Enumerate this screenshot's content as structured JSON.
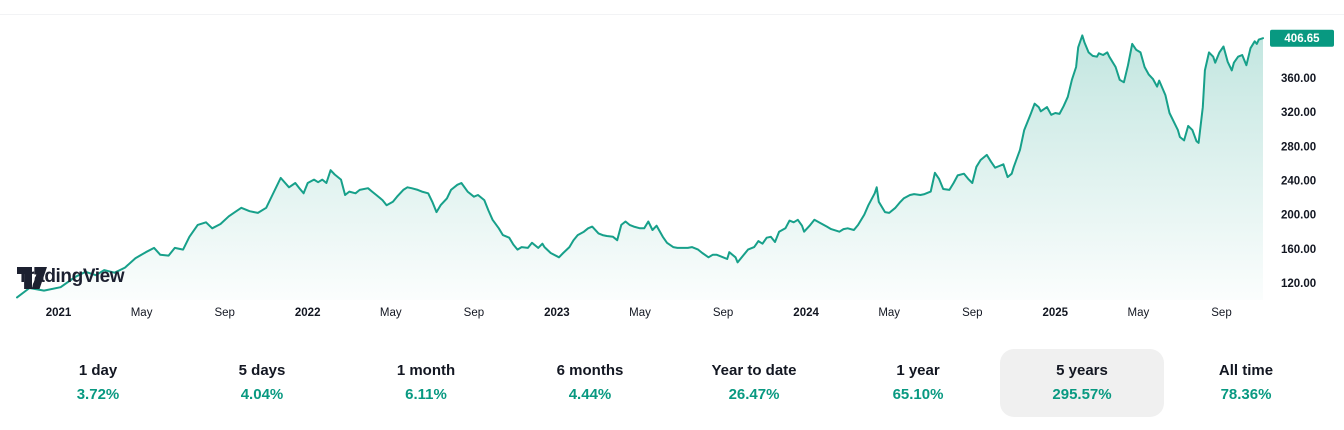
{
  "brand": {
    "logo_text": "TradingView"
  },
  "colors": {
    "accent": "#089981",
    "line": "#17a08a",
    "fill_top": "rgba(8,153,129,0.26)",
    "fill_bottom": "rgba(8,153,129,0.01)",
    "text": "#131722",
    "selected_bg": "#f0f0f0",
    "badge_bg": "#089981",
    "badge_text": "#ffffff"
  },
  "chart_data": {
    "type": "area",
    "title": "",
    "xlabel": "",
    "ylabel": "",
    "grid": false,
    "legend": false,
    "xlim": [
      0,
      60
    ],
    "ylim": [
      100,
      428
    ],
    "x_unit": "months-since-start (5-year range)",
    "x_ticks": [
      {
        "label": "2021",
        "m": 2,
        "bold": true
      },
      {
        "label": "May",
        "m": 6,
        "bold": false
      },
      {
        "label": "Sep",
        "m": 10,
        "bold": false
      },
      {
        "label": "2022",
        "m": 14,
        "bold": true
      },
      {
        "label": "May",
        "m": 18,
        "bold": false
      },
      {
        "label": "Sep",
        "m": 22,
        "bold": false
      },
      {
        "label": "2023",
        "m": 26,
        "bold": true
      },
      {
        "label": "May",
        "m": 30,
        "bold": false
      },
      {
        "label": "Sep",
        "m": 34,
        "bold": false
      },
      {
        "label": "2024",
        "m": 38,
        "bold": true
      },
      {
        "label": "May",
        "m": 42,
        "bold": false
      },
      {
        "label": "Sep",
        "m": 46,
        "bold": false
      },
      {
        "label": "2025",
        "m": 50,
        "bold": true
      },
      {
        "label": "May",
        "m": 54,
        "bold": false
      },
      {
        "label": "Sep",
        "m": 58,
        "bold": false
      }
    ],
    "y_ticks": [
      {
        "label": "360.00",
        "v": 360
      },
      {
        "label": "320.00",
        "v": 320
      },
      {
        "label": "280.00",
        "v": 280
      },
      {
        "label": "240.00",
        "v": 240
      },
      {
        "label": "200.00",
        "v": 200
      },
      {
        "label": "160.00",
        "v": 160
      },
      {
        "label": "120.00",
        "v": 120
      }
    ],
    "last_price": {
      "value": 406.65,
      "label": "406.65"
    },
    "series": [
      {
        "name": "price",
        "points": [
          [
            0,
            103
          ],
          [
            0.6,
            114
          ],
          [
            1.3,
            111
          ],
          [
            2.1,
            115
          ],
          [
            2.8,
            127
          ],
          [
            3.3,
            133
          ],
          [
            3.8,
            129
          ],
          [
            4.2,
            135
          ],
          [
            4.7,
            132
          ],
          [
            5.2,
            138
          ],
          [
            5.7,
            149
          ],
          [
            6.2,
            156
          ],
          [
            6.6,
            161
          ],
          [
            6.9,
            153
          ],
          [
            7.3,
            152
          ],
          [
            7.6,
            161
          ],
          [
            8,
            159
          ],
          [
            8.3,
            174
          ],
          [
            8.7,
            188
          ],
          [
            9.1,
            191
          ],
          [
            9.4,
            184
          ],
          [
            9.8,
            189
          ],
          [
            10.2,
            198
          ],
          [
            10.5,
            203
          ],
          [
            10.8,
            208
          ],
          [
            11.2,
            204
          ],
          [
            11.6,
            202
          ],
          [
            12,
            208
          ],
          [
            12.3,
            223
          ],
          [
            12.7,
            243
          ],
          [
            13.1,
            232
          ],
          [
            13.4,
            237
          ],
          [
            13.6,
            231
          ],
          [
            13.8,
            225
          ],
          [
            14,
            237
          ],
          [
            14.3,
            241
          ],
          [
            14.5,
            238
          ],
          [
            14.7,
            241
          ],
          [
            14.9,
            237
          ],
          [
            15.1,
            252
          ],
          [
            15.3,
            247
          ],
          [
            15.6,
            241
          ],
          [
            15.8,
            223
          ],
          [
            16,
            227
          ],
          [
            16.3,
            225
          ],
          [
            16.5,
            229
          ],
          [
            16.9,
            231
          ],
          [
            17.1,
            227
          ],
          [
            17.3,
            223
          ],
          [
            17.6,
            217
          ],
          [
            17.8,
            211
          ],
          [
            18.1,
            215
          ],
          [
            18.3,
            221
          ],
          [
            18.6,
            229
          ],
          [
            18.8,
            232
          ],
          [
            19,
            231
          ],
          [
            19.3,
            229
          ],
          [
            19.5,
            227
          ],
          [
            19.8,
            225
          ],
          [
            20,
            215
          ],
          [
            20.2,
            203
          ],
          [
            20.4,
            211
          ],
          [
            20.7,
            219
          ],
          [
            20.9,
            229
          ],
          [
            21.2,
            235
          ],
          [
            21.4,
            237
          ],
          [
            21.7,
            227
          ],
          [
            22,
            221
          ],
          [
            22.2,
            223
          ],
          [
            22.5,
            217
          ],
          [
            22.7,
            205
          ],
          [
            22.9,
            194
          ],
          [
            23.2,
            184
          ],
          [
            23.4,
            176
          ],
          [
            23.7,
            173
          ],
          [
            23.9,
            165
          ],
          [
            24.1,
            159
          ],
          [
            24.3,
            162
          ],
          [
            24.6,
            161
          ],
          [
            24.8,
            167
          ],
          [
            25.1,
            161
          ],
          [
            25.3,
            166
          ],
          [
            25.4,
            162
          ],
          [
            25.7,
            155
          ],
          [
            26.1,
            150
          ],
          [
            26.3,
            155
          ],
          [
            26.6,
            162
          ],
          [
            26.8,
            170
          ],
          [
            27,
            176
          ],
          [
            27.3,
            180
          ],
          [
            27.5,
            184
          ],
          [
            27.7,
            186
          ],
          [
            28,
            178
          ],
          [
            28.2,
            176
          ],
          [
            28.4,
            175
          ],
          [
            28.7,
            174
          ],
          [
            28.9,
            170
          ],
          [
            29.1,
            188
          ],
          [
            29.3,
            192
          ],
          [
            29.5,
            188
          ],
          [
            29.7,
            186
          ],
          [
            30,
            184
          ],
          [
            30.2,
            184
          ],
          [
            30.4,
            192
          ],
          [
            30.6,
            182
          ],
          [
            30.8,
            187
          ],
          [
            31.1,
            174
          ],
          [
            31.3,
            167
          ],
          [
            31.6,
            162
          ],
          [
            31.8,
            161
          ],
          [
            32,
            161
          ],
          [
            32.3,
            161
          ],
          [
            32.5,
            162
          ],
          [
            32.8,
            159
          ],
          [
            33,
            155
          ],
          [
            33.3,
            150
          ],
          [
            33.5,
            153
          ],
          [
            33.7,
            153
          ],
          [
            34,
            150
          ],
          [
            34.2,
            148
          ],
          [
            34.3,
            156
          ],
          [
            34.6,
            150
          ],
          [
            34.7,
            144
          ],
          [
            35,
            153
          ],
          [
            35.2,
            159
          ],
          [
            35.5,
            162
          ],
          [
            35.7,
            169
          ],
          [
            35.9,
            166
          ],
          [
            36.1,
            173
          ],
          [
            36.3,
            174
          ],
          [
            36.5,
            168
          ],
          [
            36.7,
            180
          ],
          [
            37,
            184
          ],
          [
            37.2,
            193
          ],
          [
            37.4,
            191
          ],
          [
            37.6,
            194
          ],
          [
            37.8,
            187
          ],
          [
            37.9,
            180
          ],
          [
            38.2,
            188
          ],
          [
            38.4,
            194
          ],
          [
            38.7,
            190
          ],
          [
            39,
            186
          ],
          [
            39.2,
            183
          ],
          [
            39.6,
            180
          ],
          [
            39.8,
            183
          ],
          [
            40,
            184
          ],
          [
            40.3,
            182
          ],
          [
            40.5,
            188
          ],
          [
            40.8,
            200
          ],
          [
            41,
            211
          ],
          [
            41.3,
            225
          ],
          [
            41.4,
            232
          ],
          [
            41.5,
            215
          ],
          [
            41.8,
            203
          ],
          [
            42,
            202
          ],
          [
            42.3,
            208
          ],
          [
            42.5,
            214
          ],
          [
            42.7,
            219
          ],
          [
            43,
            223
          ],
          [
            43.2,
            224
          ],
          [
            43.5,
            223
          ],
          [
            43.7,
            224
          ],
          [
            44,
            227
          ],
          [
            44.2,
            249
          ],
          [
            44.4,
            242
          ],
          [
            44.6,
            230
          ],
          [
            44.9,
            229
          ],
          [
            45.1,
            237
          ],
          [
            45.3,
            246
          ],
          [
            45.6,
            248
          ],
          [
            45.8,
            242
          ],
          [
            46,
            237
          ],
          [
            46.2,
            256
          ],
          [
            46.4,
            264
          ],
          [
            46.7,
            270
          ],
          [
            46.9,
            262
          ],
          [
            47.1,
            255
          ],
          [
            47.3,
            257
          ],
          [
            47.5,
            259
          ],
          [
            47.7,
            244
          ],
          [
            47.9,
            248
          ],
          [
            48,
            256
          ],
          [
            48.3,
            276
          ],
          [
            48.5,
            299
          ],
          [
            48.8,
            317
          ],
          [
            49,
            330
          ],
          [
            49.2,
            326
          ],
          [
            49.3,
            321
          ],
          [
            49.6,
            326
          ],
          [
            49.8,
            317
          ],
          [
            50,
            319
          ],
          [
            50.2,
            318
          ],
          [
            50.4,
            327
          ],
          [
            50.6,
            338
          ],
          [
            50.8,
            358
          ],
          [
            51,
            373
          ],
          [
            51.1,
            396
          ],
          [
            51.3,
            410
          ],
          [
            51.4,
            402
          ],
          [
            51.6,
            390
          ],
          [
            51.8,
            386
          ],
          [
            52,
            385
          ],
          [
            52.1,
            389
          ],
          [
            52.3,
            387
          ],
          [
            52.5,
            390
          ],
          [
            52.6,
            385
          ],
          [
            52.9,
            373
          ],
          [
            53.1,
            358
          ],
          [
            53.3,
            355
          ],
          [
            53.5,
            375
          ],
          [
            53.7,
            400
          ],
          [
            53.9,
            393
          ],
          [
            54.1,
            390
          ],
          [
            54.3,
            373
          ],
          [
            54.5,
            364
          ],
          [
            54.7,
            359
          ],
          [
            54.9,
            350
          ],
          [
            55,
            357
          ],
          [
            55.3,
            340
          ],
          [
            55.5,
            319
          ],
          [
            55.7,
            309
          ],
          [
            55.9,
            299
          ],
          [
            56,
            291
          ],
          [
            56.2,
            287
          ],
          [
            56.4,
            304
          ],
          [
            56.6,
            299
          ],
          [
            56.8,
            286
          ],
          [
            56.9,
            284
          ],
          [
            57.1,
            326
          ],
          [
            57.2,
            369
          ],
          [
            57.4,
            390
          ],
          [
            57.6,
            385
          ],
          [
            57.7,
            378
          ],
          [
            57.9,
            390
          ],
          [
            58.1,
            397
          ],
          [
            58.3,
            379
          ],
          [
            58.5,
            369
          ],
          [
            58.6,
            378
          ],
          [
            58.8,
            385
          ],
          [
            59,
            387
          ],
          [
            59.2,
            375
          ],
          [
            59.4,
            395
          ],
          [
            59.6,
            403
          ],
          [
            59.7,
            400
          ],
          [
            59.8,
            405
          ],
          [
            60,
            406.65
          ]
        ]
      }
    ]
  },
  "range_buttons": [
    {
      "label": "1 day",
      "change": "3.72%",
      "selected": false
    },
    {
      "label": "5 days",
      "change": "4.04%",
      "selected": false
    },
    {
      "label": "1 month",
      "change": "6.11%",
      "selected": false
    },
    {
      "label": "6 months",
      "change": "4.44%",
      "selected": false
    },
    {
      "label": "Year to date",
      "change": "26.47%",
      "selected": false
    },
    {
      "label": "1 year",
      "change": "65.10%",
      "selected": false
    },
    {
      "label": "5 years",
      "change": "295.57%",
      "selected": true
    },
    {
      "label": "All time",
      "change": "78.36%",
      "selected": false
    }
  ]
}
